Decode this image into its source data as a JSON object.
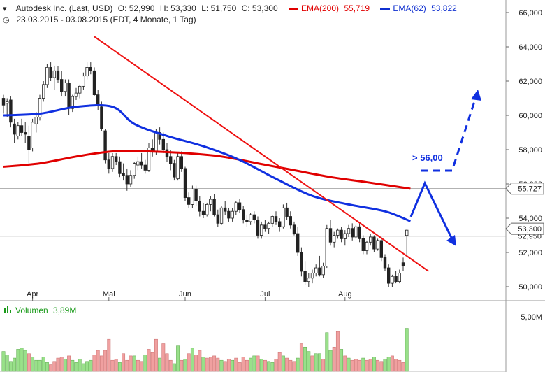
{
  "header": {
    "line1": {
      "instrument": "Autodesk Inc. (Last, USD)",
      "open": "O: 52,990",
      "high": "H: 53,330",
      "low": "L: 51,750",
      "close": "C: 53,300",
      "ema200_label": "EMA(200)",
      "ema200_value": "55,719",
      "ema62_label": "EMA(62)",
      "ema62_value": "53,822"
    },
    "line2": "23.03.2015 - 03.08.2015 (EDT, 4 Monate, 1 Tag)"
  },
  "volume": {
    "label": "Volumen",
    "value": "3,89M",
    "axis_label": "5,00M"
  },
  "annotation": {
    "target_text": "> 56,00"
  },
  "price_tags": {
    "hline_value": "55,727",
    "last_value": "53,300",
    "behind_value": "52,950"
  },
  "colors": {
    "up": "#55cc33",
    "down": "#ee2222",
    "ema200": "#e00000",
    "ema62": "#1030e0",
    "trendline": "#ee1111",
    "arrow": "#1030e0",
    "vol_up": "#99e08a",
    "vol_down": "#f0a0a0"
  },
  "chart_data": {
    "type": "candlestick",
    "ylim": [
      49.5,
      66.5
    ],
    "y_ticks": [
      "50,000",
      "52,000",
      "54,000",
      "56,000",
      "58,000",
      "60,000",
      "62,000",
      "64,000",
      "66,000"
    ],
    "y_tick_values": [
      50,
      52,
      54,
      56,
      58,
      60,
      62,
      64,
      66
    ],
    "x_labels": [
      "Apr",
      "Mai",
      "Jun",
      "Jul",
      "Aug"
    ],
    "x_label_index": [
      8,
      29,
      50,
      72,
      94
    ],
    "candles": [
      [
        61.0,
        61.2,
        60.1,
        60.6
      ],
      [
        60.7,
        61.0,
        59.9,
        60.8
      ],
      [
        60.9,
        61.1,
        59.3,
        59.6
      ],
      [
        59.5,
        59.8,
        58.4,
        58.9
      ],
      [
        58.8,
        59.6,
        58.6,
        59.4
      ],
      [
        59.4,
        59.8,
        58.8,
        59.0
      ],
      [
        59.0,
        59.6,
        58.4,
        58.9
      ],
      [
        58.8,
        59.4,
        57.2,
        58.0
      ],
      [
        58.1,
        59.8,
        57.9,
        59.6
      ],
      [
        59.5,
        60.2,
        59.0,
        59.9
      ],
      [
        59.9,
        61.2,
        59.7,
        61.0
      ],
      [
        61.0,
        62.0,
        60.8,
        61.8
      ],
      [
        61.8,
        63.0,
        61.6,
        62.8
      ],
      [
        62.8,
        63.1,
        62.0,
        62.2
      ],
      [
        62.2,
        62.9,
        61.5,
        62.6
      ],
      [
        62.6,
        62.9,
        61.9,
        62.1
      ],
      [
        62.1,
        62.6,
        61.1,
        61.4
      ],
      [
        61.4,
        62.1,
        61.1,
        61.9
      ],
      [
        61.9,
        62.1,
        60.0,
        60.4
      ],
      [
        60.4,
        61.2,
        60.2,
        61.1
      ],
      [
        61.1,
        61.6,
        60.9,
        61.3
      ],
      [
        61.3,
        61.8,
        61.0,
        61.7
      ],
      [
        61.7,
        62.5,
        61.5,
        62.3
      ],
      [
        62.3,
        63.1,
        62.1,
        62.8
      ],
      [
        62.8,
        63.1,
        62.4,
        62.6
      ],
      [
        62.6,
        62.8,
        61.1,
        61.2
      ],
      [
        61.2,
        61.5,
        60.3,
        60.6
      ],
      [
        60.5,
        60.8,
        59.1,
        59.2
      ],
      [
        59.1,
        59.2,
        57.2,
        57.4
      ],
      [
        57.4,
        57.8,
        56.6,
        56.9
      ],
      [
        56.9,
        57.8,
        56.7,
        57.6
      ],
      [
        57.6,
        57.8,
        57.1,
        57.3
      ],
      [
        57.3,
        57.6,
        56.4,
        56.6
      ],
      [
        56.6,
        57.2,
        56.2,
        56.5
      ],
      [
        56.5,
        56.9,
        55.6,
        56.0
      ],
      [
        56.0,
        56.8,
        55.8,
        56.5
      ],
      [
        56.5,
        57.3,
        56.3,
        57.2
      ],
      [
        57.1,
        57.6,
        56.8,
        57.3
      ],
      [
        57.3,
        57.8,
        56.9,
        57.1
      ],
      [
        57.1,
        57.4,
        56.6,
        56.8
      ],
      [
        56.8,
        58.4,
        56.7,
        58.1
      ],
      [
        58.1,
        58.6,
        57.6,
        57.9
      ],
      [
        57.9,
        59.2,
        57.7,
        59.0
      ],
      [
        59.0,
        59.3,
        58.3,
        58.6
      ],
      [
        58.6,
        59.0,
        57.8,
        58.0
      ],
      [
        58.0,
        58.4,
        57.3,
        57.6
      ],
      [
        57.6,
        58.0,
        56.8,
        57.2
      ],
      [
        57.2,
        57.4,
        56.2,
        56.4
      ],
      [
        56.3,
        57.8,
        56.2,
        57.6
      ],
      [
        57.6,
        57.9,
        56.7,
        56.9
      ],
      [
        56.9,
        57.0,
        55.0,
        55.2
      ],
      [
        55.2,
        55.5,
        54.6,
        54.8
      ],
      [
        54.8,
        55.9,
        54.6,
        55.7
      ],
      [
        55.7,
        55.9,
        54.7,
        55.0
      ],
      [
        55.0,
        55.3,
        54.1,
        54.4
      ],
      [
        54.4,
        54.9,
        54.0,
        54.2
      ],
      [
        54.2,
        54.9,
        54.1,
        54.8
      ],
      [
        54.8,
        55.3,
        54.4,
        55.1
      ],
      [
        55.1,
        55.4,
        54.1,
        54.2
      ],
      [
        54.2,
        54.5,
        53.5,
        53.7
      ],
      [
        53.7,
        54.7,
        53.6,
        54.6
      ],
      [
        54.6,
        55.0,
        54.2,
        54.4
      ],
      [
        54.4,
        54.6,
        53.8,
        54.0
      ],
      [
        54.0,
        54.6,
        53.8,
        54.4
      ],
      [
        54.4,
        55.0,
        54.2,
        54.9
      ],
      [
        54.9,
        55.1,
        54.3,
        54.5
      ],
      [
        54.5,
        54.7,
        53.7,
        53.9
      ],
      [
        53.9,
        54.2,
        53.5,
        53.8
      ],
      [
        53.8,
        54.3,
        53.6,
        54.2
      ],
      [
        54.2,
        54.4,
        53.7,
        53.9
      ],
      [
        53.9,
        54.1,
        52.8,
        53.0
      ],
      [
        53.0,
        53.8,
        52.8,
        53.6
      ],
      [
        53.6,
        53.9,
        53.2,
        53.4
      ],
      [
        53.4,
        53.8,
        53.1,
        53.7
      ],
      [
        53.7,
        54.2,
        53.5,
        54.1
      ],
      [
        54.1,
        54.4,
        53.6,
        53.8
      ],
      [
        53.8,
        54.0,
        53.2,
        53.5
      ],
      [
        53.5,
        54.8,
        53.4,
        54.6
      ],
      [
        54.6,
        54.9,
        53.9,
        54.1
      ],
      [
        54.1,
        54.4,
        53.4,
        53.6
      ],
      [
        53.6,
        53.8,
        53.0,
        53.1
      ],
      [
        53.1,
        53.5,
        51.8,
        52.0
      ],
      [
        52.0,
        52.3,
        50.6,
        50.9
      ],
      [
        50.9,
        51.5,
        50.1,
        50.3
      ],
      [
        50.3,
        50.8,
        50.0,
        50.5
      ],
      [
        50.5,
        51.0,
        50.2,
        50.8
      ],
      [
        50.8,
        51.3,
        50.6,
        51.1
      ],
      [
        51.1,
        51.8,
        50.6,
        50.7
      ],
      [
        50.7,
        51.4,
        50.5,
        51.2
      ],
      [
        51.2,
        53.6,
        51.1,
        53.4
      ],
      [
        53.4,
        53.9,
        52.4,
        52.6
      ],
      [
        52.6,
        53.2,
        52.3,
        53.0
      ],
      [
        53.0,
        53.4,
        52.8,
        53.3
      ],
      [
        53.3,
        53.5,
        52.6,
        52.8
      ],
      [
        52.8,
        53.3,
        52.4,
        53.1
      ],
      [
        53.1,
        53.6,
        52.9,
        53.4
      ],
      [
        53.4,
        53.7,
        52.7,
        52.9
      ],
      [
        52.9,
        53.6,
        52.8,
        53.5
      ],
      [
        53.5,
        53.7,
        52.6,
        52.8
      ],
      [
        52.8,
        53.0,
        51.9,
        52.1
      ],
      [
        52.1,
        52.7,
        51.9,
        52.6
      ],
      [
        52.6,
        53.1,
        52.4,
        52.9
      ],
      [
        52.9,
        53.0,
        52.0,
        52.2
      ],
      [
        52.2,
        52.8,
        52.1,
        52.7
      ],
      [
        52.7,
        52.9,
        51.5,
        51.7
      ],
      [
        51.7,
        51.9,
        50.9,
        51.1
      ],
      [
        51.1,
        51.3,
        50.0,
        50.2
      ],
      [
        50.2,
        50.7,
        50.0,
        50.6
      ],
      [
        50.6,
        50.9,
        50.2,
        50.3
      ],
      [
        50.3,
        51.0,
        50.2,
        50.8
      ],
      [
        51.4,
        51.7,
        50.9,
        51.2
      ],
      [
        52.99,
        53.33,
        51.75,
        53.3
      ]
    ],
    "ema200": [
      [
        0,
        57.0
      ],
      [
        10,
        57.2
      ],
      [
        20,
        57.6
      ],
      [
        30,
        57.9
      ],
      [
        40,
        57.9
      ],
      [
        50,
        57.8
      ],
      [
        60,
        57.6
      ],
      [
        70,
        57.2
      ],
      [
        80,
        56.8
      ],
      [
        90,
        56.4
      ],
      [
        100,
        56.1
      ],
      [
        112,
        55.72
      ]
    ],
    "ema62": [
      [
        0,
        60.0
      ],
      [
        10,
        60.1
      ],
      [
        20,
        60.5
      ],
      [
        30,
        60.5
      ],
      [
        36,
        59.5
      ],
      [
        45,
        58.8
      ],
      [
        55,
        58.2
      ],
      [
        65,
        57.4
      ],
      [
        75,
        56.3
      ],
      [
        85,
        55.3
      ],
      [
        95,
        54.8
      ],
      [
        105,
        54.4
      ],
      [
        112,
        53.82
      ]
    ],
    "trendline": [
      [
        25,
        64.6
      ],
      [
        117,
        50.9
      ]
    ],
    "volume_ylim": [
      0,
      5.0
    ],
    "volume": [
      [
        1.8,
        1
      ],
      [
        1.5,
        1
      ],
      [
        0.9,
        1
      ],
      [
        1.2,
        1
      ],
      [
        2.0,
        1
      ],
      [
        2.1,
        1
      ],
      [
        1.9,
        1
      ],
      [
        1.6,
        0
      ],
      [
        1.3,
        1
      ],
      [
        1.0,
        1
      ],
      [
        1.0,
        1
      ],
      [
        1.3,
        1
      ],
      [
        0.8,
        1
      ],
      [
        0.6,
        0
      ],
      [
        0.9,
        0
      ],
      [
        1.2,
        0
      ],
      [
        1.3,
        0
      ],
      [
        1.1,
        1
      ],
      [
        1.4,
        0
      ],
      [
        1.0,
        1
      ],
      [
        0.8,
        1
      ],
      [
        1.1,
        1
      ],
      [
        0.7,
        1
      ],
      [
        0.9,
        1
      ],
      [
        1.0,
        1
      ],
      [
        1.5,
        0
      ],
      [
        1.9,
        0
      ],
      [
        1.4,
        0
      ],
      [
        1.9,
        0
      ],
      [
        2.9,
        0
      ],
      [
        1.0,
        0
      ],
      [
        1.1,
        0
      ],
      [
        0.8,
        1
      ],
      [
        1.6,
        0
      ],
      [
        1.0,
        0
      ],
      [
        1.4,
        0
      ],
      [
        1.4,
        1
      ],
      [
        1.0,
        0
      ],
      [
        0.9,
        0
      ],
      [
        1.5,
        1
      ],
      [
        2.0,
        0
      ],
      [
        1.7,
        0
      ],
      [
        2.9,
        0
      ],
      [
        1.2,
        1
      ],
      [
        2.5,
        0
      ],
      [
        1.6,
        0
      ],
      [
        1.0,
        0
      ],
      [
        0.7,
        1
      ],
      [
        2.3,
        1
      ],
      [
        1.0,
        0
      ],
      [
        1.1,
        1
      ],
      [
        1.6,
        0
      ],
      [
        2.1,
        1
      ],
      [
        1.5,
        0
      ],
      [
        1.9,
        0
      ],
      [
        1.3,
        1
      ],
      [
        1.2,
        0
      ],
      [
        1.3,
        0
      ],
      [
        1.4,
        0
      ],
      [
        1.2,
        0
      ],
      [
        1.0,
        1
      ],
      [
        0.9,
        0
      ],
      [
        1.1,
        0
      ],
      [
        1.0,
        1
      ],
      [
        1.2,
        0
      ],
      [
        0.8,
        0
      ],
      [
        1.3,
        0
      ],
      [
        1.0,
        0
      ],
      [
        1.2,
        1
      ],
      [
        1.4,
        1
      ],
      [
        1.4,
        0
      ],
      [
        1.1,
        1
      ],
      [
        1.0,
        0
      ],
      [
        0.9,
        1
      ],
      [
        0.8,
        1
      ],
      [
        1.1,
        0
      ],
      [
        1.7,
        0
      ],
      [
        1.4,
        1
      ],
      [
        1.2,
        0
      ],
      [
        1.0,
        0
      ],
      [
        0.9,
        0
      ],
      [
        1.2,
        1
      ],
      [
        2.5,
        0
      ],
      [
        2.2,
        1
      ],
      [
        1.8,
        1
      ],
      [
        1.4,
        0
      ],
      [
        1.6,
        1
      ],
      [
        1.6,
        1
      ],
      [
        1.1,
        0
      ],
      [
        3.5,
        1
      ],
      [
        1.9,
        1
      ],
      [
        2.2,
        0
      ],
      [
        3.6,
        0
      ],
      [
        2.0,
        1
      ],
      [
        1.4,
        0
      ],
      [
        1.2,
        1
      ],
      [
        1.0,
        0
      ],
      [
        1.1,
        0
      ],
      [
        1.0,
        0
      ],
      [
        1.2,
        1
      ],
      [
        1.0,
        0
      ],
      [
        1.1,
        0
      ],
      [
        1.3,
        1
      ],
      [
        1.0,
        0
      ],
      [
        0.9,
        0
      ],
      [
        1.1,
        1
      ],
      [
        1.3,
        1
      ],
      [
        1.4,
        0
      ],
      [
        1.1,
        0
      ],
      [
        1.0,
        0
      ],
      [
        0.8,
        0
      ],
      [
        3.89,
        1
      ]
    ]
  }
}
